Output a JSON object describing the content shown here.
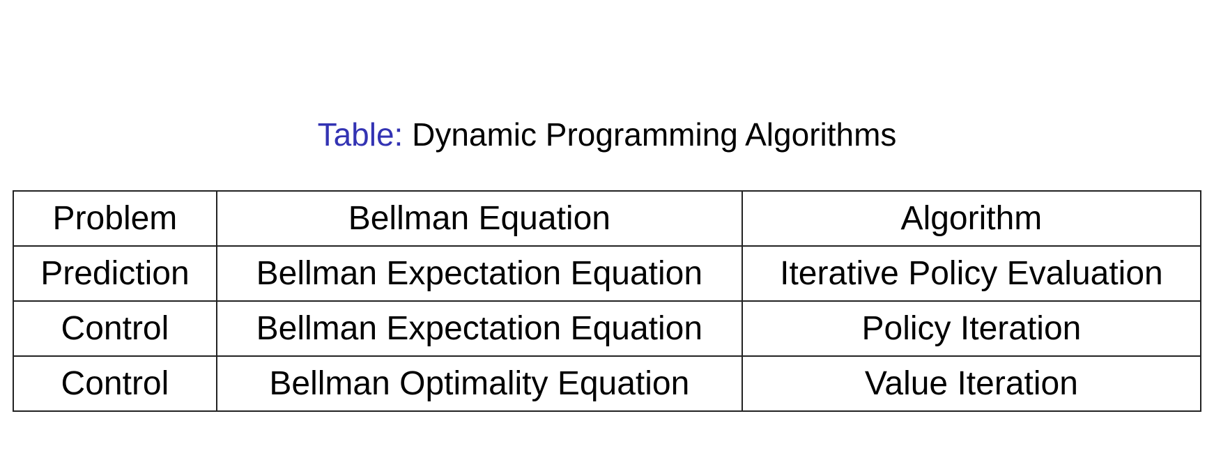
{
  "caption": {
    "label": "Table:",
    "title": "Dynamic Programming Algorithms",
    "label_color": "#3333b3"
  },
  "table": {
    "headers": [
      "Problem",
      "Bellman Equation",
      "Algorithm"
    ],
    "rows": [
      [
        "Prediction",
        "Bellman Expectation Equation",
        "Iterative Policy Evaluation"
      ],
      [
        "Control",
        "Bellman Expectation Equation",
        "Policy Iteration"
      ],
      [
        "Control",
        "Bellman Optimality Equation",
        "Value Iteration"
      ]
    ]
  }
}
